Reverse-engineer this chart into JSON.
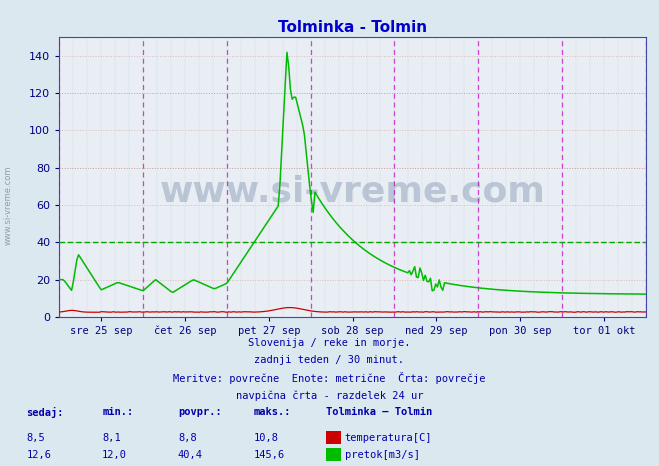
{
  "title": "Tolminka - Tolmin",
  "title_color": "#0000cc",
  "bg_color": "#dce8f0",
  "plot_bg_color": "#e8eef4",
  "vline_color": "#cc44cc",
  "hline_avg_color": "#00aa00",
  "watermark_text": "www.si-vreme.com",
  "watermark_color": "#1a3a6a",
  "watermark_alpha": 0.22,
  "tick_color": "#000080",
  "ylim": [
    0,
    150
  ],
  "yticks": [
    0,
    20,
    40,
    60,
    80,
    100,
    120,
    140
  ],
  "x_tick_labels": [
    "sre 25 sep",
    "čet 26 sep",
    "pet 27 sep",
    "sob 28 sep",
    "ned 29 sep",
    "pon 30 sep",
    "tor 01 okt"
  ],
  "subtitle_lines": [
    "Slovenija / reke in morje.",
    "zadnji teden / 30 minut.",
    "Meritve: povrečne  Enote: metrične  Črta: povrečje",
    "navpična črta - razdelek 24 ur"
  ],
  "subtitle_color": "#0000aa",
  "table_header": [
    "sedaj:",
    "min.:",
    "povpr.:",
    "maks.:",
    "Tolminka – Tolmin"
  ],
  "table_row1": [
    "8,5",
    "8,1",
    "8,8",
    "10,8",
    "temperatura[C]"
  ],
  "table_row2": [
    "12,6",
    "12,0",
    "40,4",
    "145,6",
    "pretok[m3/s]"
  ],
  "temp_color": "#cc0000",
  "flow_color": "#00bb00",
  "avg_flow": 40.4,
  "grid_h_major_color": "#cc9999",
  "grid_h_minor_color": "#ddbbbb",
  "grid_v_color": "#bbbbcc"
}
